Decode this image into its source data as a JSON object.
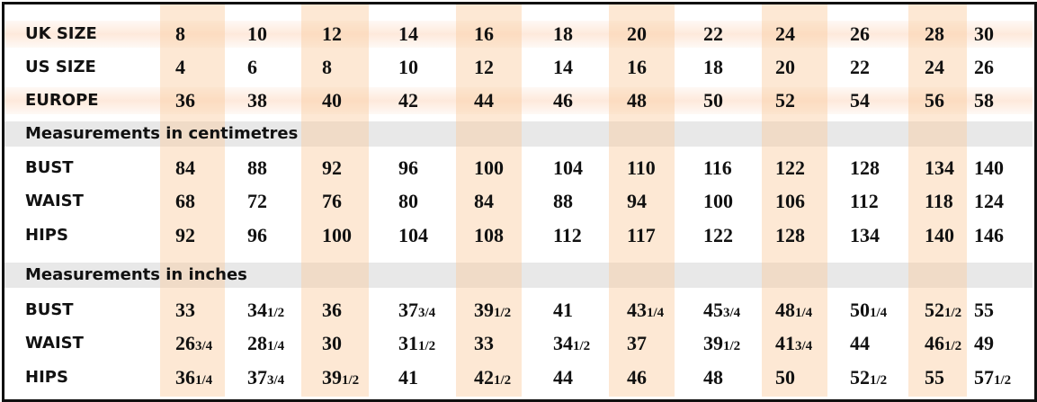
{
  "table": {
    "highlight_color": "#fbd3ad",
    "section_color": "#e6e6e6",
    "size_rows": [
      {
        "label": "UK SIZE",
        "values": [
          "8",
          "10",
          "12",
          "14",
          "16",
          "18",
          "20",
          "22",
          "24",
          "26",
          "28",
          "30"
        ]
      },
      {
        "label": "US SIZE",
        "values": [
          "4",
          "6",
          "8",
          "10",
          "12",
          "14",
          "16",
          "18",
          "20",
          "22",
          "24",
          "26"
        ]
      },
      {
        "label": "EUROPE",
        "values": [
          "36",
          "38",
          "40",
          "42",
          "44",
          "46",
          "48",
          "50",
          "52",
          "54",
          "56",
          "58"
        ]
      }
    ],
    "sections": [
      {
        "title": "Measurements in centimetres",
        "rows": [
          {
            "label": "BUST",
            "values": [
              "84",
              "88",
              "92",
              "96",
              "100",
              "104",
              "110",
              "116",
              "122",
              "128",
              "134",
              "140"
            ]
          },
          {
            "label": "WAIST",
            "values": [
              "68",
              "72",
              "76",
              "80",
              "84",
              "88",
              "94",
              "100",
              "106",
              "112",
              "118",
              "124"
            ]
          },
          {
            "label": "HIPS",
            "values": [
              "92",
              "96",
              "100",
              "104",
              "108",
              "112",
              "117",
              "122",
              "128",
              "134",
              "140",
              "146"
            ]
          }
        ]
      },
      {
        "title": "Measurements in inches",
        "rows": [
          {
            "label": "BUST",
            "values": [
              "33",
              "34 1/2",
              "36",
              "37 3/4",
              "39 1/2",
              "41",
              "43 1/4",
              "45 3/4",
              "48 1/4",
              "50 1/4",
              "52 1/2",
              "55"
            ]
          },
          {
            "label": "WAIST",
            "values": [
              "26 3/4",
              "28 1/4",
              "30",
              "31 1/2",
              "33",
              "34 1/2",
              "37",
              "39 1/2",
              "41 3/4",
              "44",
              "46 1/2",
              "49"
            ]
          },
          {
            "label": "HIPS",
            "values": [
              "36 1/4",
              "37 3/4",
              "39 1/2",
              "41",
              "42 1/2",
              "44",
              "46",
              "48",
              "50",
              "52 1/2",
              "55",
              "57 1/2"
            ]
          }
        ]
      }
    ]
  }
}
